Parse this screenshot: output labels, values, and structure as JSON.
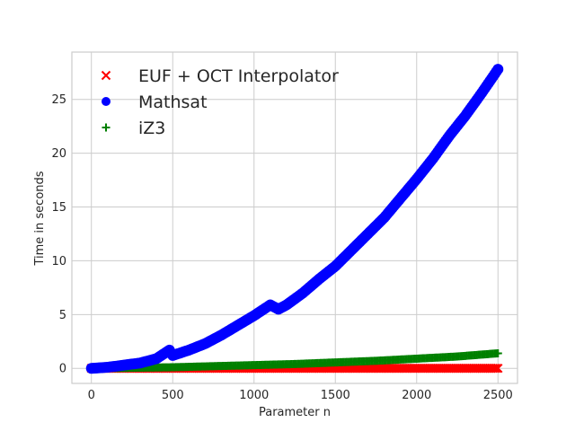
{
  "chart_data": {
    "type": "scatter",
    "xlabel": "Parameter n",
    "ylabel": "Time in seconds",
    "xlim": [
      -120,
      2620
    ],
    "ylim": [
      -1.4,
      29.4
    ],
    "xticks": [
      0,
      500,
      1000,
      1500,
      2000,
      2500
    ],
    "yticks": [
      0,
      5,
      10,
      15,
      20,
      25
    ],
    "grid": true,
    "legend_position": "top-left",
    "series": [
      {
        "name": "EUF + OCT Interpolator",
        "marker": "x",
        "color": "#ff0000",
        "x": [
          0,
          250,
          500,
          750,
          1000,
          1250,
          1500,
          1750,
          2000,
          2250,
          2500
        ],
        "y": [
          0.0,
          0.0,
          0.0,
          0.0,
          0.0,
          0.0,
          0.0,
          0.0,
          0.0,
          0.0,
          0.0
        ]
      },
      {
        "name": "Mathsat",
        "marker": "circle",
        "color": "#0000ff",
        "x": [
          0,
          100,
          200,
          300,
          400,
          480,
          500,
          600,
          700,
          800,
          900,
          1000,
          1100,
          1150,
          1200,
          1300,
          1400,
          1500,
          1600,
          1700,
          1800,
          1900,
          2000,
          2100,
          2200,
          2300,
          2400,
          2500
        ],
        "y": [
          0.0,
          0.1,
          0.3,
          0.5,
          0.9,
          1.7,
          1.2,
          1.7,
          2.3,
          3.1,
          4.0,
          4.9,
          5.9,
          5.5,
          5.9,
          7.0,
          8.3,
          9.5,
          11.0,
          12.5,
          14.0,
          15.8,
          17.6,
          19.5,
          21.6,
          23.5,
          25.6,
          27.8
        ]
      },
      {
        "name": "iZ3",
        "marker": "plus",
        "color": "#008000",
        "x": [
          0,
          250,
          500,
          750,
          1000,
          1250,
          1500,
          1750,
          2000,
          2250,
          2500
        ],
        "y": [
          0.0,
          0.05,
          0.1,
          0.2,
          0.3,
          0.4,
          0.55,
          0.7,
          0.9,
          1.1,
          1.4
        ]
      }
    ]
  }
}
